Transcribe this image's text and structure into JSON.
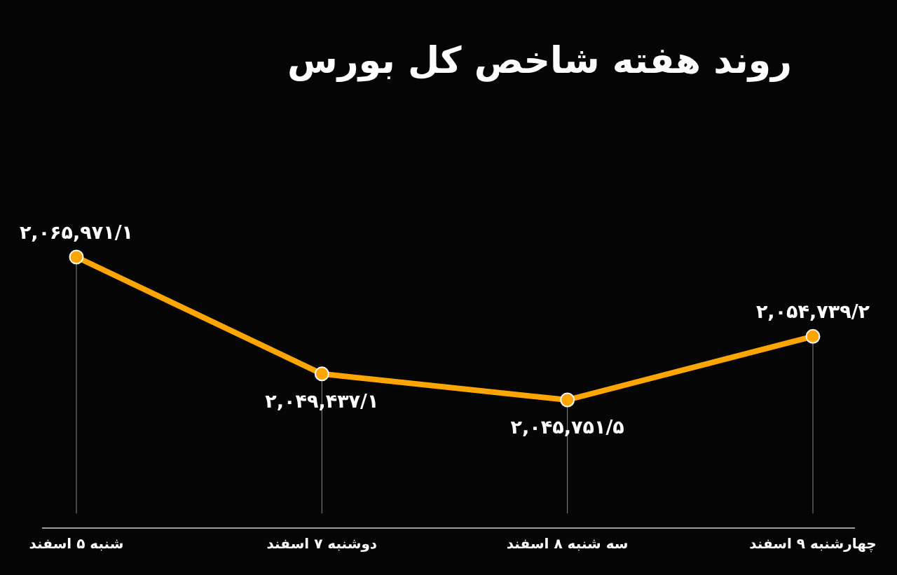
{
  "chart_data": {
    "type": "line",
    "title": "روند هفته شاخص کل بورس",
    "categories": [
      "شنبه ۵ اسفند",
      "دوشنبه ۷ اسفند",
      "سه شنبه ۸ اسفند",
      "چهارشنبه ۹ اسفند"
    ],
    "series": [
      {
        "color": "#ffa500",
        "values": [
          2065971.1,
          2049437.1,
          2045751.5,
          2054739.2
        ],
        "value_labels": [
          "۲,۰۶۵,۹۷۱/۱",
          "۲,۰۴۹,۴۳۷/۱",
          "۲,۰۴۵,۷۵۱/۵",
          "۲,۰۵۴,۷۳۹/۲"
        ]
      }
    ],
    "marker": "circle",
    "line_style": "solid",
    "grid": "x",
    "tick_labels": "x"
  }
}
